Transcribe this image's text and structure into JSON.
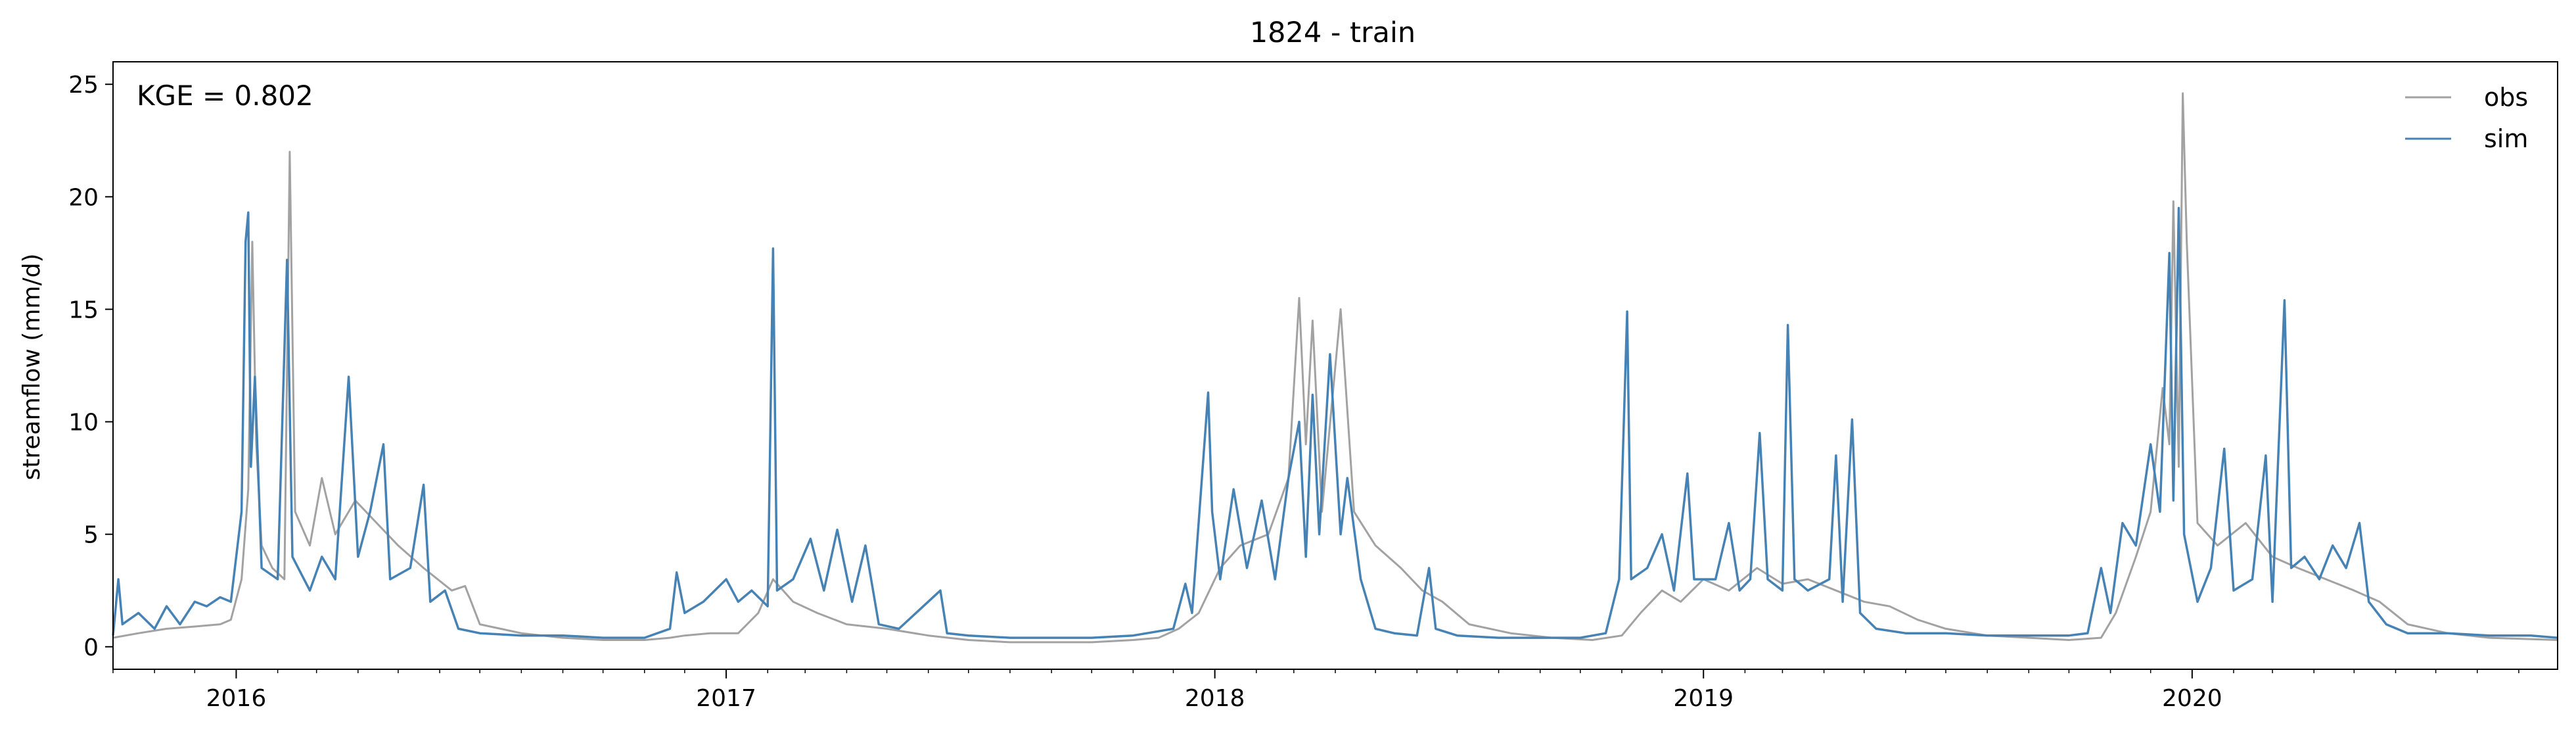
{
  "chart_data": {
    "type": "line",
    "title": "1824 - train",
    "xlabel": "",
    "ylabel": "streamflow (mm/d)",
    "annotation": "KGE = 0.802",
    "xlim": [
      "2015-10-01",
      "2020-09-30"
    ],
    "ylim": [
      -1,
      26
    ],
    "x_ticks": [
      {
        "date": "2016-01-01",
        "label": "2016"
      },
      {
        "date": "2017-01-01",
        "label": "2017"
      },
      {
        "date": "2018-01-01",
        "label": "2018"
      },
      {
        "date": "2019-01-01",
        "label": "2019"
      },
      {
        "date": "2020-01-01",
        "label": "2020"
      }
    ],
    "y_ticks": [
      0,
      5,
      10,
      15,
      20,
      25
    ],
    "legend": {
      "position": "top-right"
    },
    "series": [
      {
        "name": "obs",
        "color": "#a2a2a2",
        "points": [
          [
            "2015-10-01",
            0.4
          ],
          [
            "2015-10-20",
            0.6
          ],
          [
            "2015-11-10",
            0.8
          ],
          [
            "2015-12-01",
            0.9
          ],
          [
            "2015-12-20",
            1.0
          ],
          [
            "2015-12-28",
            1.2
          ],
          [
            "2016-01-05",
            3.0
          ],
          [
            "2016-01-10",
            7.0
          ],
          [
            "2016-01-13",
            18.0
          ],
          [
            "2016-01-16",
            9.0
          ],
          [
            "2016-01-20",
            4.5
          ],
          [
            "2016-01-28",
            3.5
          ],
          [
            "2016-02-06",
            3.0
          ],
          [
            "2016-02-10",
            22.0
          ],
          [
            "2016-02-14",
            6.0
          ],
          [
            "2016-02-25",
            4.5
          ],
          [
            "2016-03-05",
            7.5
          ],
          [
            "2016-03-15",
            5.0
          ],
          [
            "2016-03-30",
            6.5
          ],
          [
            "2016-04-15",
            5.5
          ],
          [
            "2016-05-01",
            4.5
          ],
          [
            "2016-05-20",
            3.5
          ],
          [
            "2016-06-10",
            2.5
          ],
          [
            "2016-06-20",
            2.7
          ],
          [
            "2016-07-01",
            1.0
          ],
          [
            "2016-08-01",
            0.6
          ],
          [
            "2016-09-01",
            0.4
          ],
          [
            "2016-10-01",
            0.3
          ],
          [
            "2016-11-01",
            0.3
          ],
          [
            "2016-11-20",
            0.4
          ],
          [
            "2016-12-01",
            0.5
          ],
          [
            "2016-12-20",
            0.6
          ],
          [
            "2017-01-10",
            0.6
          ],
          [
            "2017-01-25",
            1.5
          ],
          [
            "2017-02-05",
            3.0
          ],
          [
            "2017-02-20",
            2.0
          ],
          [
            "2017-03-10",
            1.5
          ],
          [
            "2017-04-01",
            1.0
          ],
          [
            "2017-05-01",
            0.8
          ],
          [
            "2017-06-01",
            0.5
          ],
          [
            "2017-07-01",
            0.3
          ],
          [
            "2017-08-01",
            0.2
          ],
          [
            "2017-09-01",
            0.2
          ],
          [
            "2017-10-01",
            0.2
          ],
          [
            "2017-11-01",
            0.3
          ],
          [
            "2017-11-20",
            0.4
          ],
          [
            "2017-12-05",
            0.8
          ],
          [
            "2017-12-20",
            1.5
          ],
          [
            "2018-01-05",
            3.5
          ],
          [
            "2018-01-20",
            4.5
          ],
          [
            "2018-02-10",
            5.0
          ],
          [
            "2018-02-25",
            7.5
          ],
          [
            "2018-03-05",
            15.5
          ],
          [
            "2018-03-10",
            9.0
          ],
          [
            "2018-03-15",
            14.5
          ],
          [
            "2018-03-22",
            6.0
          ],
          [
            "2018-04-05",
            15.0
          ],
          [
            "2018-04-15",
            6.0
          ],
          [
            "2018-05-01",
            4.5
          ],
          [
            "2018-05-20",
            3.5
          ],
          [
            "2018-06-05",
            2.5
          ],
          [
            "2018-06-20",
            2.0
          ],
          [
            "2018-07-10",
            1.0
          ],
          [
            "2018-08-10",
            0.6
          ],
          [
            "2018-09-10",
            0.4
          ],
          [
            "2018-10-10",
            0.3
          ],
          [
            "2018-11-01",
            0.5
          ],
          [
            "2018-11-15",
            1.5
          ],
          [
            "2018-12-01",
            2.5
          ],
          [
            "2018-12-15",
            2.0
          ],
          [
            "2019-01-01",
            3.0
          ],
          [
            "2019-01-20",
            2.5
          ],
          [
            "2019-02-10",
            3.5
          ],
          [
            "2019-03-01",
            2.8
          ],
          [
            "2019-03-20",
            3.0
          ],
          [
            "2019-04-10",
            2.5
          ],
          [
            "2019-05-01",
            2.0
          ],
          [
            "2019-05-20",
            1.8
          ],
          [
            "2019-06-10",
            1.2
          ],
          [
            "2019-07-01",
            0.8
          ],
          [
            "2019-08-01",
            0.5
          ],
          [
            "2019-09-01",
            0.4
          ],
          [
            "2019-10-01",
            0.3
          ],
          [
            "2019-10-25",
            0.4
          ],
          [
            "2019-11-05",
            1.5
          ],
          [
            "2019-11-20",
            4.0
          ],
          [
            "2019-12-01",
            6.0
          ],
          [
            "2019-12-10",
            11.5
          ],
          [
            "2019-12-15",
            9.0
          ],
          [
            "2019-12-18",
            19.8
          ],
          [
            "2019-12-22",
            8.0
          ],
          [
            "2019-12-25",
            24.6
          ],
          [
            "2019-12-28",
            18.0
          ],
          [
            "2020-01-05",
            5.5
          ],
          [
            "2020-01-20",
            4.5
          ],
          [
            "2020-02-10",
            5.5
          ],
          [
            "2020-03-01",
            4.0
          ],
          [
            "2020-03-20",
            3.5
          ],
          [
            "2020-04-10",
            3.0
          ],
          [
            "2020-05-01",
            2.5
          ],
          [
            "2020-05-20",
            2.0
          ],
          [
            "2020-06-10",
            1.0
          ],
          [
            "2020-07-10",
            0.6
          ],
          [
            "2020-08-10",
            0.4
          ],
          [
            "2020-09-30",
            0.3
          ]
        ]
      },
      {
        "name": "sim",
        "color": "#4682b4",
        "points": [
          [
            "2015-10-01",
            0.5
          ],
          [
            "2015-10-05",
            3.0
          ],
          [
            "2015-10-08",
            1.0
          ],
          [
            "2015-10-20",
            1.5
          ],
          [
            "2015-11-01",
            0.8
          ],
          [
            "2015-11-10",
            1.8
          ],
          [
            "2015-11-20",
            1.0
          ],
          [
            "2015-12-01",
            2.0
          ],
          [
            "2015-12-10",
            1.8
          ],
          [
            "2015-12-20",
            2.2
          ],
          [
            "2015-12-28",
            2.0
          ],
          [
            "2016-01-05",
            6.0
          ],
          [
            "2016-01-08",
            18.0
          ],
          [
            "2016-01-10",
            19.3
          ],
          [
            "2016-01-12",
            8.0
          ],
          [
            "2016-01-15",
            12.0
          ],
          [
            "2016-01-20",
            3.5
          ],
          [
            "2016-02-01",
            3.0
          ],
          [
            "2016-02-08",
            17.2
          ],
          [
            "2016-02-12",
            4.0
          ],
          [
            "2016-02-25",
            2.5
          ],
          [
            "2016-03-05",
            4.0
          ],
          [
            "2016-03-15",
            3.0
          ],
          [
            "2016-03-25",
            12.0
          ],
          [
            "2016-04-01",
            4.0
          ],
          [
            "2016-04-10",
            6.0
          ],
          [
            "2016-04-20",
            9.0
          ],
          [
            "2016-04-25",
            3.0
          ],
          [
            "2016-05-10",
            3.5
          ],
          [
            "2016-05-20",
            7.2
          ],
          [
            "2016-05-25",
            2.0
          ],
          [
            "2016-06-05",
            2.5
          ],
          [
            "2016-06-15",
            0.8
          ],
          [
            "2016-07-01",
            0.6
          ],
          [
            "2016-08-01",
            0.5
          ],
          [
            "2016-09-01",
            0.5
          ],
          [
            "2016-10-01",
            0.4
          ],
          [
            "2016-11-01",
            0.4
          ],
          [
            "2016-11-20",
            0.8
          ],
          [
            "2016-11-25",
            3.3
          ],
          [
            "2016-12-01",
            1.5
          ],
          [
            "2016-12-15",
            2.0
          ],
          [
            "2017-01-01",
            3.0
          ],
          [
            "2017-01-10",
            2.0
          ],
          [
            "2017-01-20",
            2.5
          ],
          [
            "2017-02-01",
            1.8
          ],
          [
            "2017-02-05",
            17.7
          ],
          [
            "2017-02-08",
            2.5
          ],
          [
            "2017-02-20",
            3.0
          ],
          [
            "2017-03-05",
            4.8
          ],
          [
            "2017-03-15",
            2.5
          ],
          [
            "2017-03-25",
            5.2
          ],
          [
            "2017-04-05",
            2.0
          ],
          [
            "2017-04-15",
            4.5
          ],
          [
            "2017-04-25",
            1.0
          ],
          [
            "2017-05-10",
            0.8
          ],
          [
            "2017-06-10",
            2.5
          ],
          [
            "2017-06-15",
            0.6
          ],
          [
            "2017-07-01",
            0.5
          ],
          [
            "2017-08-01",
            0.4
          ],
          [
            "2017-09-01",
            0.4
          ],
          [
            "2017-10-01",
            0.4
          ],
          [
            "2017-11-01",
            0.5
          ],
          [
            "2017-12-01",
            0.8
          ],
          [
            "2017-12-10",
            2.8
          ],
          [
            "2017-12-15",
            1.5
          ],
          [
            "2017-12-27",
            11.3
          ],
          [
            "2017-12-30",
            6.0
          ],
          [
            "2018-01-05",
            3.0
          ],
          [
            "2018-01-15",
            7.0
          ],
          [
            "2018-01-25",
            3.5
          ],
          [
            "2018-02-05",
            6.5
          ],
          [
            "2018-02-15",
            3.0
          ],
          [
            "2018-02-25",
            7.5
          ],
          [
            "2018-03-05",
            10.0
          ],
          [
            "2018-03-10",
            4.0
          ],
          [
            "2018-03-15",
            11.2
          ],
          [
            "2018-03-20",
            5.0
          ],
          [
            "2018-03-28",
            13.0
          ],
          [
            "2018-04-05",
            5.0
          ],
          [
            "2018-04-10",
            7.5
          ],
          [
            "2018-04-20",
            3.0
          ],
          [
            "2018-05-01",
            0.8
          ],
          [
            "2018-05-15",
            0.6
          ],
          [
            "2018-06-01",
            0.5
          ],
          [
            "2018-06-10",
            3.5
          ],
          [
            "2018-06-15",
            0.8
          ],
          [
            "2018-07-01",
            0.5
          ],
          [
            "2018-08-01",
            0.4
          ],
          [
            "2018-09-01",
            0.4
          ],
          [
            "2018-10-01",
            0.4
          ],
          [
            "2018-10-20",
            0.6
          ],
          [
            "2018-10-30",
            3.0
          ],
          [
            "2018-11-05",
            14.9
          ],
          [
            "2018-11-08",
            3.0
          ],
          [
            "2018-11-20",
            3.5
          ],
          [
            "2018-12-01",
            5.0
          ],
          [
            "2018-12-10",
            2.5
          ],
          [
            "2018-12-20",
            7.7
          ],
          [
            "2018-12-25",
            3.0
          ],
          [
            "2019-01-10",
            3.0
          ],
          [
            "2019-01-20",
            5.5
          ],
          [
            "2019-01-28",
            2.5
          ],
          [
            "2019-02-05",
            3.0
          ],
          [
            "2019-02-12",
            9.5
          ],
          [
            "2019-02-18",
            3.0
          ],
          [
            "2019-03-01",
            2.5
          ],
          [
            "2019-03-05",
            14.3
          ],
          [
            "2019-03-10",
            3.0
          ],
          [
            "2019-03-20",
            2.5
          ],
          [
            "2019-04-05",
            3.0
          ],
          [
            "2019-04-10",
            8.5
          ],
          [
            "2019-04-15",
            2.0
          ],
          [
            "2019-04-22",
            10.1
          ],
          [
            "2019-04-28",
            1.5
          ],
          [
            "2019-05-10",
            0.8
          ],
          [
            "2019-06-01",
            0.6
          ],
          [
            "2019-07-01",
            0.6
          ],
          [
            "2019-08-01",
            0.5
          ],
          [
            "2019-09-01",
            0.5
          ],
          [
            "2019-10-01",
            0.5
          ],
          [
            "2019-10-15",
            0.6
          ],
          [
            "2019-10-25",
            3.5
          ],
          [
            "2019-11-01",
            1.5
          ],
          [
            "2019-11-10",
            5.5
          ],
          [
            "2019-11-20",
            4.5
          ],
          [
            "2019-12-01",
            9.0
          ],
          [
            "2019-12-08",
            6.0
          ],
          [
            "2019-12-15",
            17.5
          ],
          [
            "2019-12-18",
            6.5
          ],
          [
            "2019-12-22",
            19.5
          ],
          [
            "2019-12-26",
            5.0
          ],
          [
            "2020-01-05",
            2.0
          ],
          [
            "2020-01-15",
            3.5
          ],
          [
            "2020-01-25",
            8.8
          ],
          [
            "2020-02-01",
            2.5
          ],
          [
            "2020-02-15",
            3.0
          ],
          [
            "2020-02-25",
            8.5
          ],
          [
            "2020-03-01",
            2.0
          ],
          [
            "2020-03-10",
            15.4
          ],
          [
            "2020-03-15",
            3.5
          ],
          [
            "2020-03-25",
            4.0
          ],
          [
            "2020-04-05",
            3.0
          ],
          [
            "2020-04-15",
            4.5
          ],
          [
            "2020-04-25",
            3.5
          ],
          [
            "2020-05-05",
            5.5
          ],
          [
            "2020-05-12",
            2.0
          ],
          [
            "2020-05-25",
            1.0
          ],
          [
            "2020-06-10",
            0.6
          ],
          [
            "2020-07-10",
            0.6
          ],
          [
            "2020-08-10",
            0.5
          ],
          [
            "2020-09-10",
            0.5
          ],
          [
            "2020-09-30",
            0.4
          ]
        ]
      }
    ]
  }
}
